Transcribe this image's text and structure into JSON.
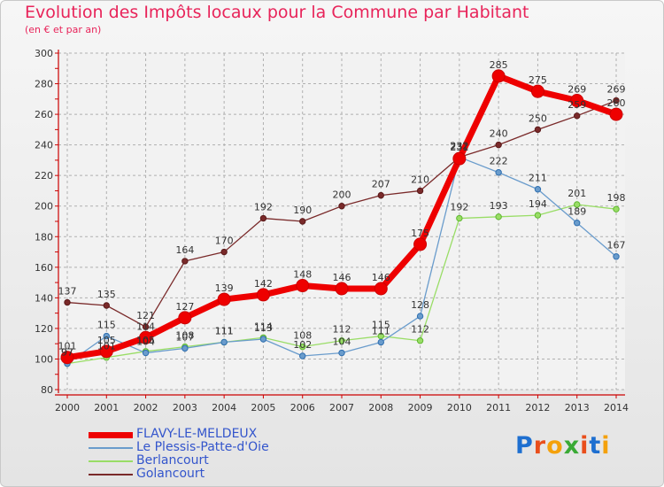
{
  "header": {
    "title": "Evolution des Impôts locaux pour la Commune par Habitant",
    "subtitle": "(en € et par an)"
  },
  "logo": {
    "text": "Proxiti",
    "letter_colors": [
      "#1e6fd0",
      "#e94e1b",
      "#f4a10c",
      "#3aaa35",
      "#e94e1b",
      "#1e6fd0",
      "#f4a10c"
    ]
  },
  "colors": {
    "axis": "#cc0000",
    "grid": "#b0b0b0",
    "tick_text": "#333333",
    "label_text": "#333333",
    "title": "#e8245a",
    "legend_text": "#3355cc"
  },
  "chart_data": {
    "type": "line",
    "title": "Evolution des Impôts locaux pour la Commune par Habitant",
    "subtitle": "(en € et par an)",
    "xlabel": "",
    "ylabel": "",
    "x": [
      2000,
      2001,
      2002,
      2003,
      2004,
      2005,
      2006,
      2007,
      2008,
      2009,
      2010,
      2011,
      2012,
      2013,
      2014
    ],
    "ylim": [
      80,
      300
    ],
    "yticks": [
      80,
      100,
      120,
      140,
      160,
      180,
      200,
      220,
      240,
      260,
      280,
      300
    ],
    "grid": true,
    "legend_position": "bottom-left",
    "series": [
      {
        "name": "FLAVY-LE-MELDEUX",
        "color": "#ee0000",
        "width": 7,
        "marker": 7,
        "values": [
          101,
          105,
          114,
          127,
          139,
          142,
          148,
          146,
          146,
          175,
          231,
          285,
          275,
          269,
          260
        ]
      },
      {
        "name": "Le Plessis-Patte-d'Oie",
        "color": "#6a9ccc",
        "width": 1.3,
        "marker": 3.2,
        "values": [
          97,
          115,
          104,
          107,
          111,
          113,
          102,
          104,
          111,
          128,
          232,
          222,
          211,
          189,
          167
        ]
      },
      {
        "name": "Berlancourt",
        "color": "#99dd66",
        "width": 1.3,
        "marker": 3.2,
        "values": [
          97,
          101,
          105,
          108,
          111,
          114,
          108,
          112,
          115,
          112,
          192,
          193,
          194,
          201,
          198
        ]
      },
      {
        "name": "Golancourt",
        "color": "#7a2a2a",
        "width": 1.3,
        "marker": 3.2,
        "values": [
          137,
          135,
          121,
          164,
          170,
          192,
          190,
          200,
          207,
          210,
          232,
          240,
          250,
          259,
          269
        ]
      }
    ]
  }
}
